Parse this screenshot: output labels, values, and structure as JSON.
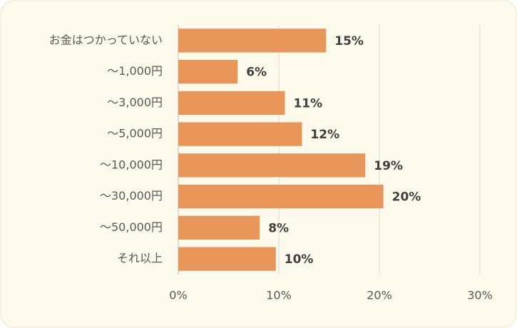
{
  "chart_data": {
    "type": "bar",
    "orientation": "horizontal",
    "categories": [
      "お金はつかっていない",
      "〜1,000円",
      "〜3,000円",
      "〜5,000円",
      "〜10,000円",
      "〜30,000円",
      "〜50,000円",
      "それ以上"
    ],
    "values": [
      14.7,
      5.9,
      10.6,
      12.3,
      18.6,
      20.4,
      8.1,
      9.7
    ],
    "value_labels": [
      "15%",
      "6%",
      "11%",
      "12%",
      "19%",
      "20%",
      "8%",
      "10%"
    ],
    "color": "#e8955a",
    "xlim": [
      0,
      30
    ],
    "xticks": [
      {
        "value": 0,
        "label": "0%"
      },
      {
        "value": 10,
        "label": "10%"
      },
      {
        "value": 20,
        "label": "20%"
      },
      {
        "value": 30,
        "label": "30%"
      }
    ],
    "grid": true
  }
}
